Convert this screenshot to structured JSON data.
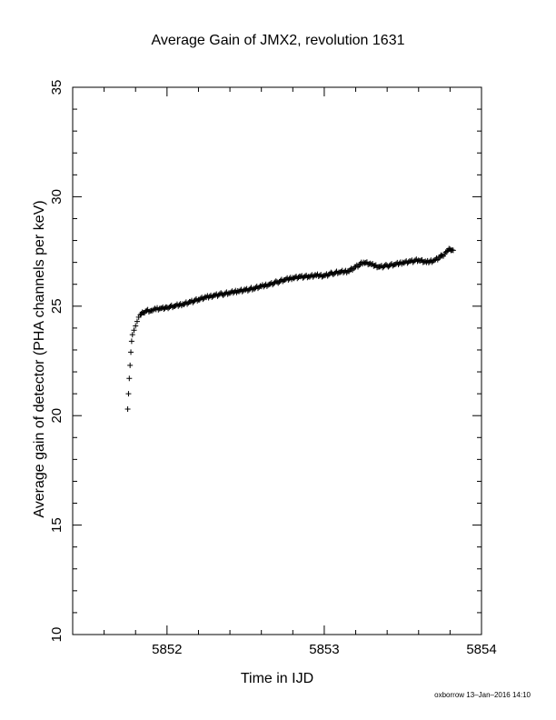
{
  "chart_data": {
    "type": "scatter",
    "title": "Average Gain of JMX2, revolution 1631",
    "xlabel": "Time in IJD",
    "ylabel": "Average gain of detector (PHA channels per keV)",
    "xlim": [
      5851.4,
      5854.0
    ],
    "ylim": [
      10,
      35
    ],
    "x_ticks": [
      "5852",
      "5853",
      "5854"
    ],
    "y_ticks": [
      "10",
      "15",
      "20",
      "25",
      "30",
      "35"
    ],
    "marker": "+",
    "grid": false,
    "series": [
      {
        "x": [
          5851.75,
          5851.755,
          5851.76,
          5851.765,
          5851.77,
          5851.775,
          5851.78,
          5851.79,
          5851.8,
          5851.81,
          5851.82,
          5851.83,
          5851.85,
          5851.87,
          5851.9,
          5851.93,
          5851.96,
          5852.0,
          5852.05,
          5852.1,
          5852.15,
          5852.2,
          5852.25,
          5852.3,
          5852.35,
          5852.4,
          5852.45,
          5852.5,
          5852.55,
          5852.6,
          5852.65,
          5852.7,
          5852.75,
          5852.8,
          5852.85,
          5852.9,
          5852.95,
          5853.0,
          5853.05,
          5853.1,
          5853.15,
          5853.2,
          5853.25,
          5853.3,
          5853.35,
          5853.4,
          5853.45,
          5853.5,
          5853.55,
          5853.6,
          5853.65,
          5853.7,
          5853.75,
          5853.78,
          5853.8,
          5853.82
        ],
        "y": [
          20.3,
          21.0,
          21.7,
          22.3,
          22.9,
          23.4,
          23.7,
          23.9,
          24.1,
          24.3,
          24.5,
          24.6,
          24.7,
          24.8,
          24.8,
          24.85,
          24.9,
          24.95,
          25.0,
          25.1,
          25.2,
          25.3,
          25.4,
          25.5,
          25.55,
          25.6,
          25.7,
          25.75,
          25.8,
          25.9,
          26.0,
          26.1,
          26.2,
          26.3,
          26.35,
          26.35,
          26.4,
          26.4,
          26.5,
          26.55,
          26.6,
          26.8,
          27.0,
          26.9,
          26.8,
          26.85,
          26.9,
          27.0,
          27.05,
          27.1,
          27.0,
          27.1,
          27.3,
          27.5,
          27.6,
          27.55
        ]
      }
    ]
  },
  "footer": {
    "stamp": "oxborrow 13–Jan–2016 14:10"
  }
}
